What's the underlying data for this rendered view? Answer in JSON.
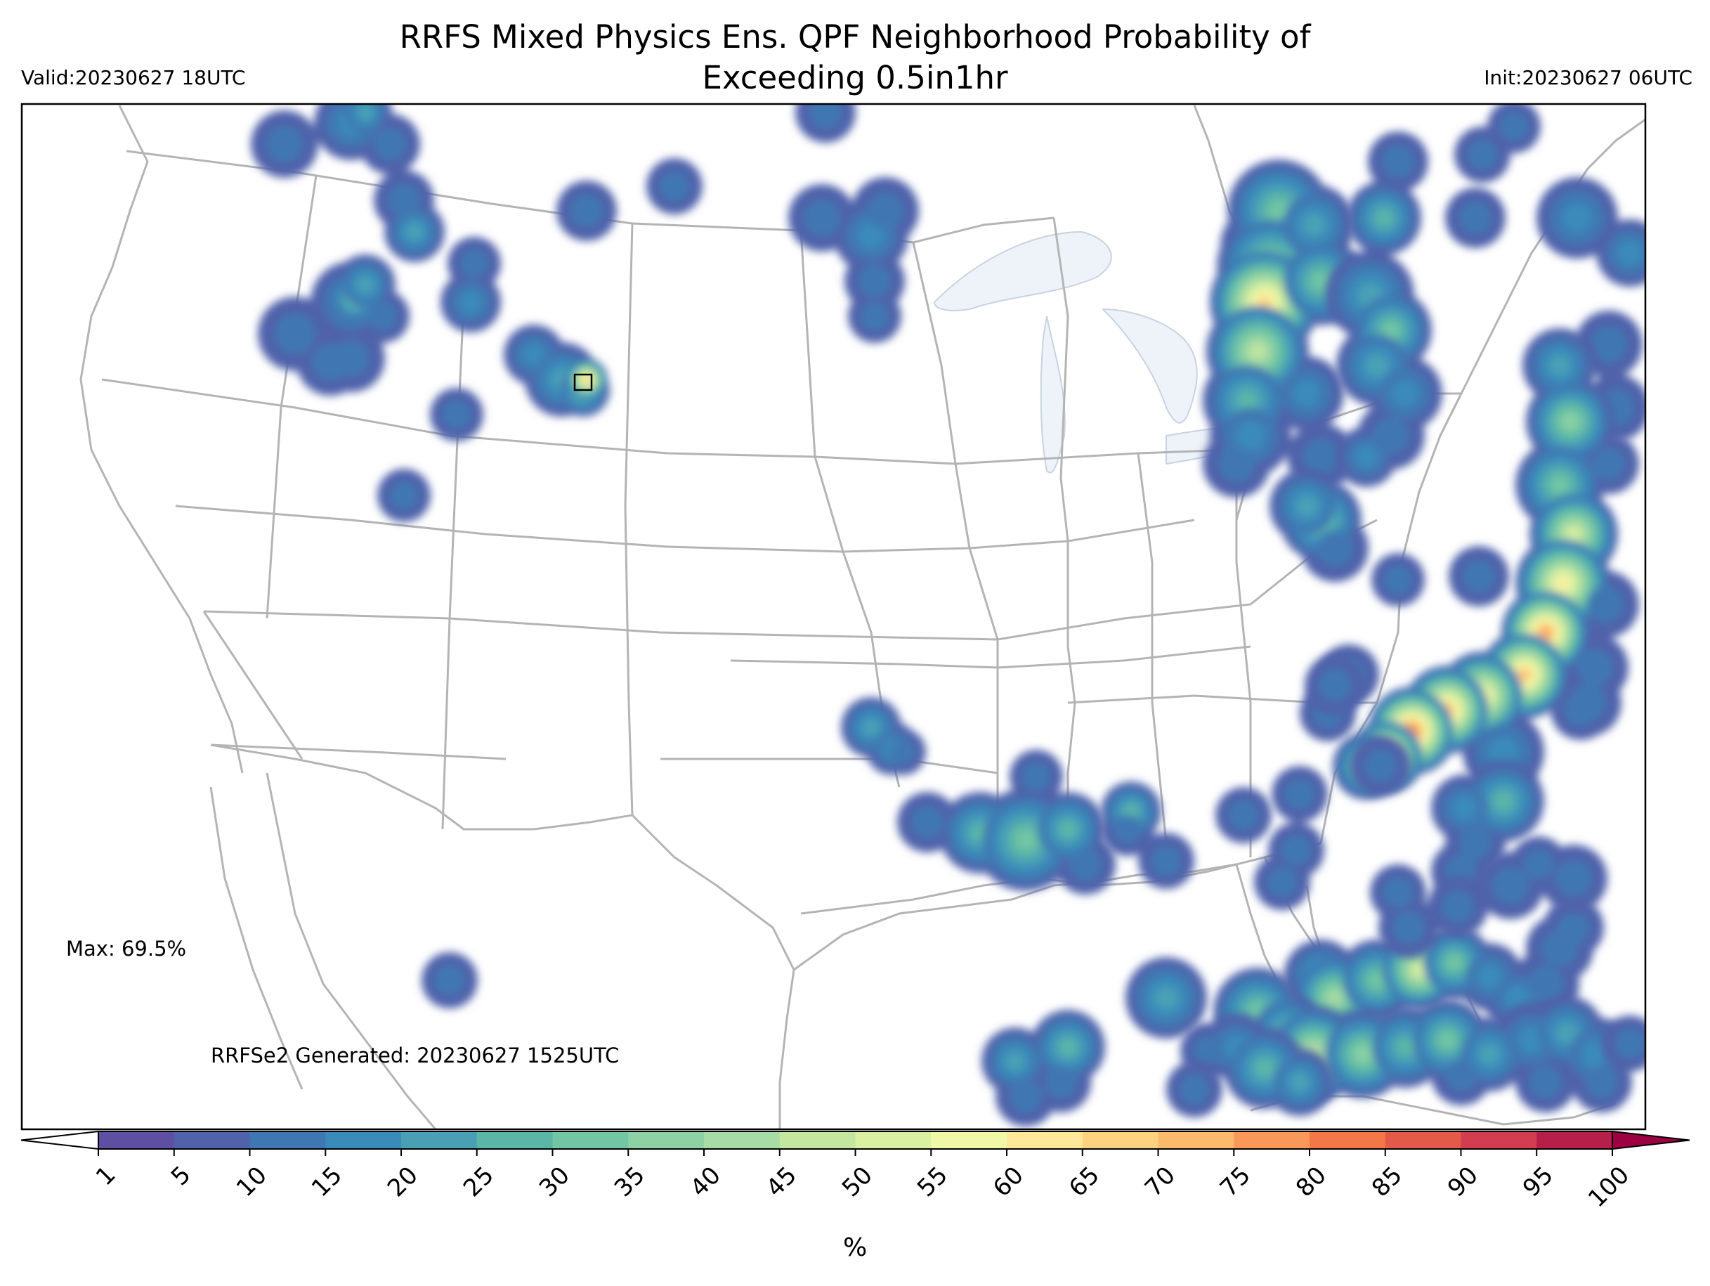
{
  "header": {
    "title_line1": "RRFS Mixed Physics Ens. QPF Neighborhood Probability of",
    "title_line2": "Exceeding 0.5in1hr",
    "valid": "Valid:20230627 18UTC",
    "init": "Init:20230627 06UTC"
  },
  "annotations": {
    "max": "Max: 69.5%",
    "generated": "RRFSe2 Generated: 20230627 1525UTC"
  },
  "colorbar": {
    "unit": "%",
    "ticks": [
      "1",
      "5",
      "10",
      "15",
      "20",
      "25",
      "30",
      "35",
      "40",
      "45",
      "50",
      "55",
      "60",
      "65",
      "70",
      "75",
      "80",
      "85",
      "90",
      "95",
      "100"
    ],
    "colors": [
      "#5e4fa2",
      "#4f62aa",
      "#3f77b2",
      "#3b8bba",
      "#49a0b5",
      "#5cb6a8",
      "#72c6a4",
      "#8dd1a4",
      "#a7dca4",
      "#c3e79f",
      "#dbf1a2",
      "#f0f8a8",
      "#fde999",
      "#fdd380",
      "#fcba6d",
      "#f99858",
      "#f47748",
      "#e45a49",
      "#d43d4f",
      "#b51f49",
      "#9e0142"
    ],
    "under_color": "#ffffff",
    "over_color": "#9e0142"
  }
}
